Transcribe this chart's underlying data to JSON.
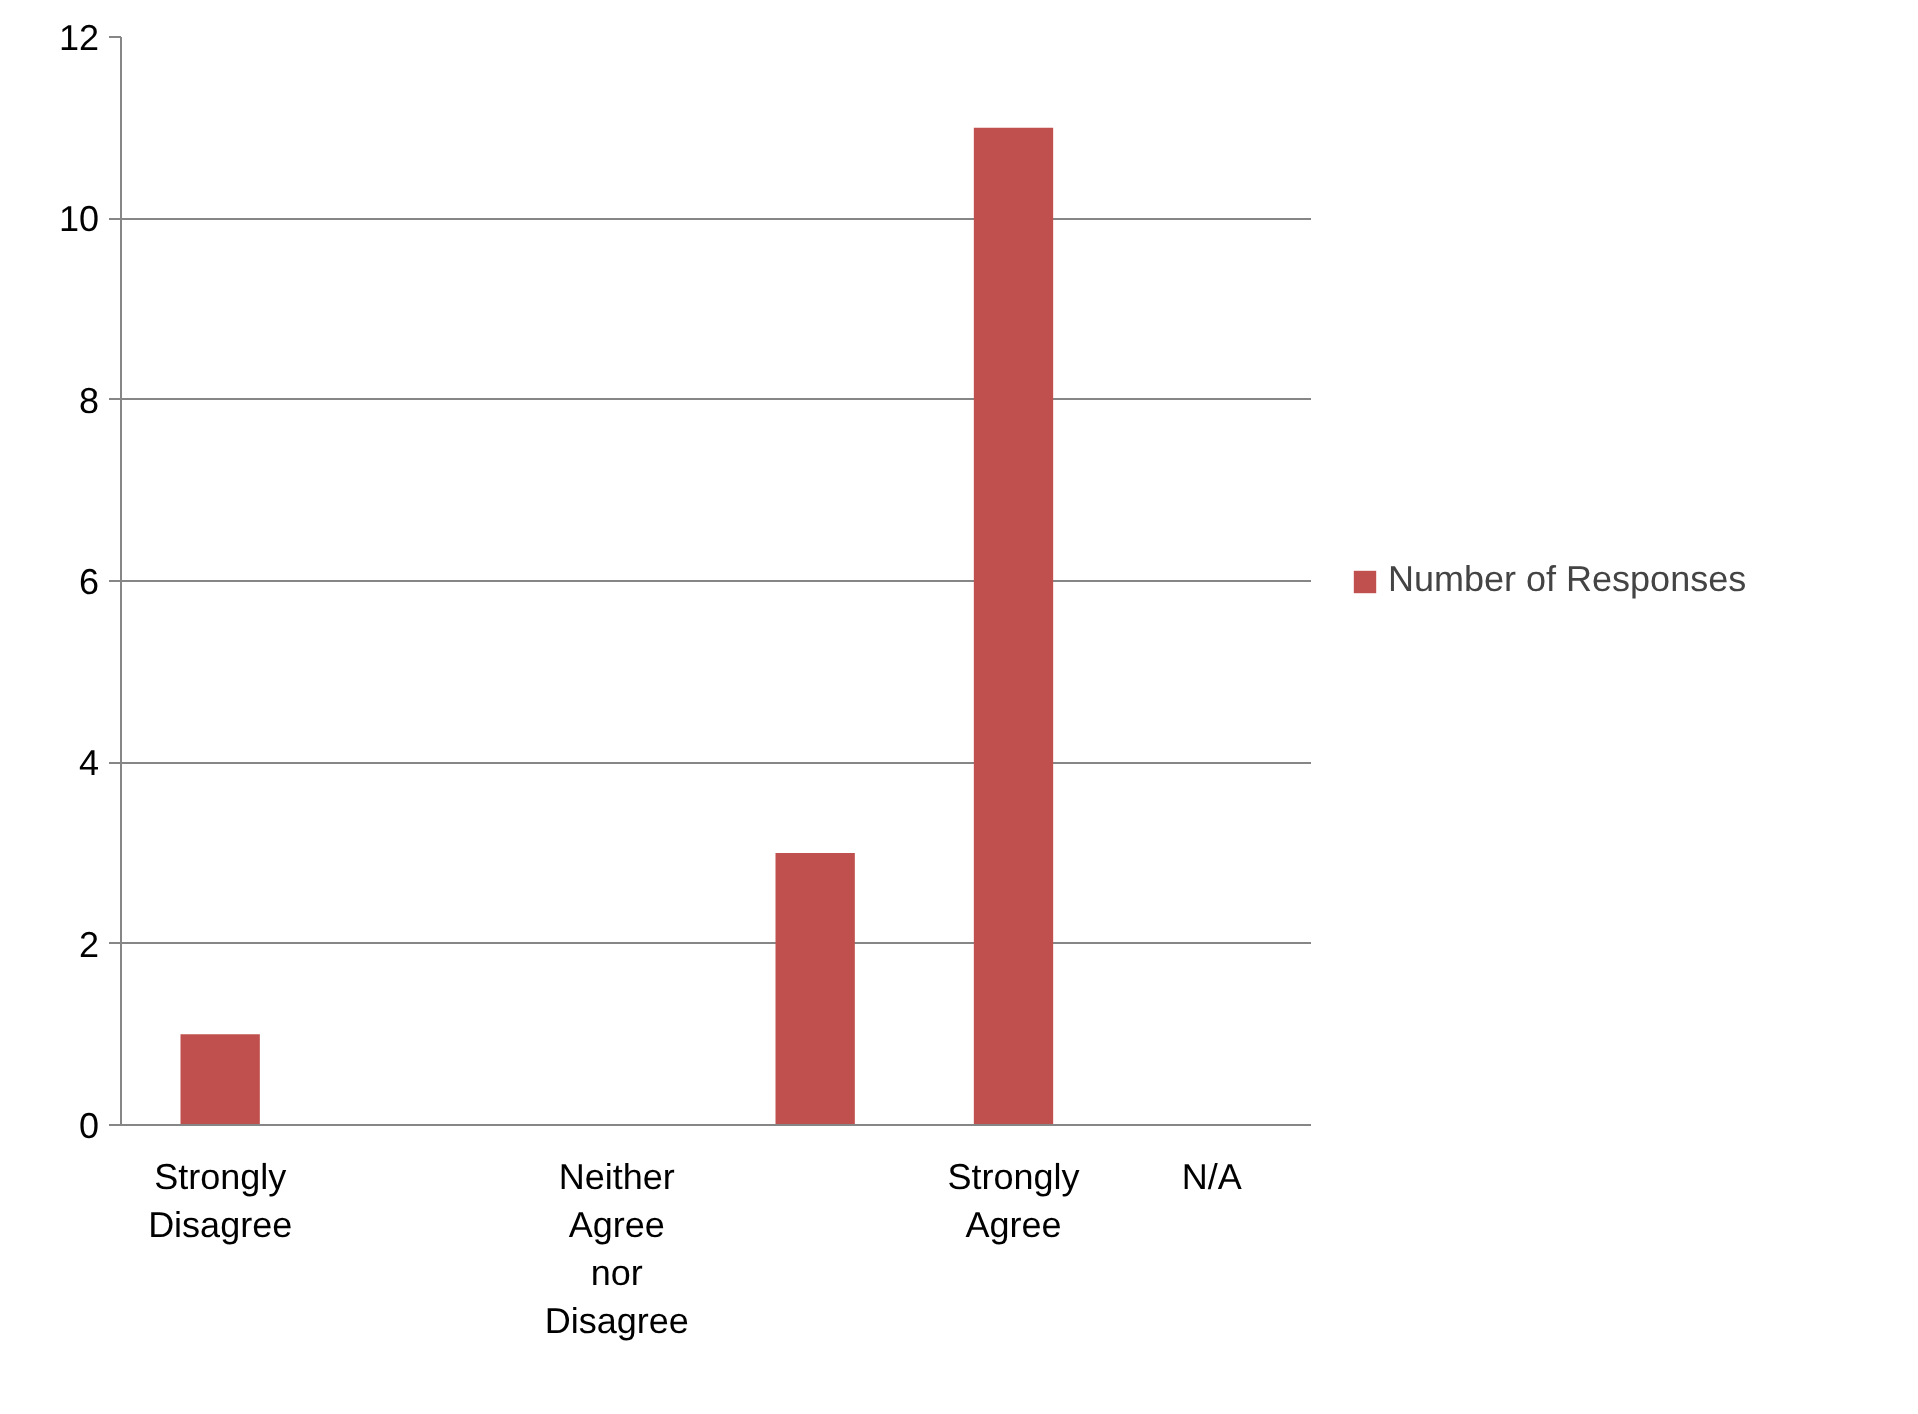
{
  "chart_data": {
    "type": "bar",
    "categories": [
      "Strongly Disagree",
      null,
      "Neither Agree nor Disagree",
      null,
      "Strongly Agree",
      "N/A"
    ],
    "series": [
      {
        "name": "Number of Responses",
        "color": "#c0504d",
        "values": [
          1,
          0,
          0,
          3,
          11,
          0
        ]
      }
    ],
    "ylim": [
      0,
      12
    ],
    "yticks": [
      0,
      2,
      4,
      6,
      8,
      10,
      12
    ],
    "grid": "y",
    "legend": "right"
  }
}
